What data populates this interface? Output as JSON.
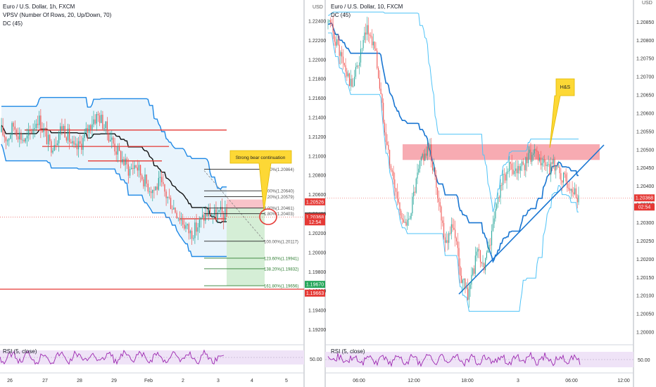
{
  "colors": {
    "up": "#26a69a",
    "down": "#ef5350",
    "dc_band": "#1e88e5",
    "trend": "#1976d2",
    "resistance": "#e53935",
    "zone": "#f48f98",
    "callout": "#fdd835",
    "rsi": "#9c27b0",
    "rsi_fill": "#efe3f7",
    "fib_green": "#2e7d32",
    "price_red": "#e53935",
    "price_green": "#26a65b",
    "price_gray": "#4a4a4a",
    "vp_fill": "#c7e8c8"
  },
  "left_panel": {
    "legend": [
      "Euro / U.S. Dollar, 1h, FXCM",
      "VPSV (Number Of Rows, 20, Up/Down, 70)",
      "DC (45)"
    ],
    "axis_unit": "USD",
    "price_ticks": [
      "1.22400",
      "1.22200",
      "1.22000",
      "1.21800",
      "1.21600",
      "1.21400",
      "1.21200",
      "1.21000",
      "1.20800",
      "1.20600",
      "1.20400",
      "1.20200",
      "1.20000",
      "1.19800",
      "1.19600",
      "1.19400",
      "1.19200"
    ],
    "time_ticks": [
      "26",
      "27",
      "28",
      "29",
      "Feb",
      "2",
      "3",
      "4",
      "5"
    ],
    "callout": "Strong bear continuation",
    "fib_levels": [
      {
        "label": "0.00%(1.20864)",
        "price": 1.20864
      },
      {
        "label": "0.00%(1.20640)",
        "price": 1.2064
      },
      {
        "label": "8.20%(1.20579)",
        "price": 1.20579
      },
      {
        "label": "4.00%(1.20461)",
        "price": 1.20461
      },
      {
        "label": "1.80%(1.20403)",
        "price": 1.20403
      },
      {
        "label": "100.00%(1.20117)",
        "price": 1.20117
      },
      {
        "label": "123.60%(1.19941)",
        "price": 1.19941
      },
      {
        "label": "138.20%(1.19832)",
        "price": 1.19832
      },
      {
        "label": "161.80%(1.19656)",
        "price": 1.19656
      }
    ],
    "price_tags": [
      {
        "text": "1.20526",
        "price": 1.20526,
        "color": "#e53935"
      },
      {
        "text": "1.20379",
        "price": 1.20379,
        "color": "#4a4a4a"
      },
      {
        "text": "1.20368",
        "price": 1.20368,
        "color": "#e53935"
      },
      {
        "text": "12:54",
        "price": 1.20318,
        "color": "#e53935"
      },
      {
        "text": "1.19670",
        "price": 1.1967,
        "color": "#26a65b"
      },
      {
        "text": "1.19663",
        "price": 1.19579,
        "color": "#e53935"
      }
    ],
    "rsi_label": "RSI (5, close)",
    "rsi_tick": "50.00"
  },
  "right_panel": {
    "legend": [
      "Euro / U.S. Dollar, 10, FXCM",
      "DC (45)"
    ],
    "axis_unit": "USD",
    "price_ticks": [
      "1.20850",
      "1.20800",
      "1.20750",
      "1.20700",
      "1.20650",
      "1.20600",
      "1.20550",
      "1.20500",
      "1.20450",
      "1.20400",
      "1.20350",
      "1.20300",
      "1.20250",
      "1.20200",
      "1.20150",
      "1.20100",
      "1.20050",
      "1.20000"
    ],
    "time_ticks": [
      "06:00",
      "12:00",
      "18:00",
      "3",
      "06:00",
      "12:00"
    ],
    "callout": "H&S",
    "price_tags": [
      {
        "text": "1.20368",
        "price": 1.20368,
        "color": "#e53935"
      },
      {
        "text": "02:54",
        "price": 1.20343,
        "color": "#e53935"
      }
    ],
    "rsi_label": "RSI (5, close)",
    "rsi_tick": "50.00"
  },
  "chart_data": [
    {
      "type": "candlestick",
      "title": "Euro / U.S. Dollar, 1h, FXCM",
      "indicators": [
        "VPSV (Number Of Rows, 20, Up/Down, 70)",
        "DC (45)"
      ],
      "x": [
        "26",
        "27",
        "28",
        "29",
        "Feb",
        "2",
        "3",
        "4",
        "5"
      ],
      "ylim": [
        1.1908,
        1.2256
      ],
      "approx_close_path": [
        1.2125,
        1.2118,
        1.2132,
        1.2122,
        1.2115,
        1.2128,
        1.214,
        1.2125,
        1.211,
        1.2118,
        1.2132,
        1.212,
        1.2105,
        1.2112,
        1.2125,
        1.2138,
        1.2142,
        1.213,
        1.2118,
        1.2105,
        1.2095,
        1.2085,
        1.2092,
        1.208,
        1.207,
        1.2065,
        1.2072,
        1.206,
        1.205,
        1.204,
        1.203,
        1.202,
        1.2025,
        1.2035,
        1.2042,
        1.2038,
        1.204,
        1.2037
      ],
      "horizontal_levels": [
        1.2127,
        1.211,
        1.2095,
        1.2035,
        1.1962
      ],
      "fibonacci": [
        1.20864,
        1.2064,
        1.20579,
        1.20461,
        1.20403,
        1.20117,
        1.19941,
        1.19832,
        1.19656
      ],
      "last_price": 1.20368,
      "rsi_level": 50.0
    },
    {
      "type": "candlestick",
      "title": "Euro / U.S. Dollar, 10, FXCM",
      "indicators": [
        "DC (45)"
      ],
      "x": [
        "06:00",
        "12:00",
        "18:00",
        "3",
        "06:00",
        "12:00"
      ],
      "ylim": [
        1.19975,
        1.20895
      ],
      "approx_close_path": [
        1.2085,
        1.208,
        1.2073,
        1.2067,
        1.2075,
        1.2083,
        1.2078,
        1.206,
        1.2045,
        1.2035,
        1.2028,
        1.2038,
        1.2048,
        1.205,
        1.2038,
        1.2025,
        1.203,
        1.2015,
        1.201,
        1.2022,
        1.2018,
        1.2028,
        1.204,
        1.2045,
        1.2043,
        1.2046,
        1.2049,
        1.2047,
        1.2044,
        1.2046,
        1.2042,
        1.204,
        1.2037
      ],
      "resistance_zone": [
        1.20472,
        1.20515
      ],
      "trendline": [
        [
          1.2011,
          1.205
        ]
      ],
      "last_price": 1.20368,
      "rsi_level": 50.0
    }
  ]
}
